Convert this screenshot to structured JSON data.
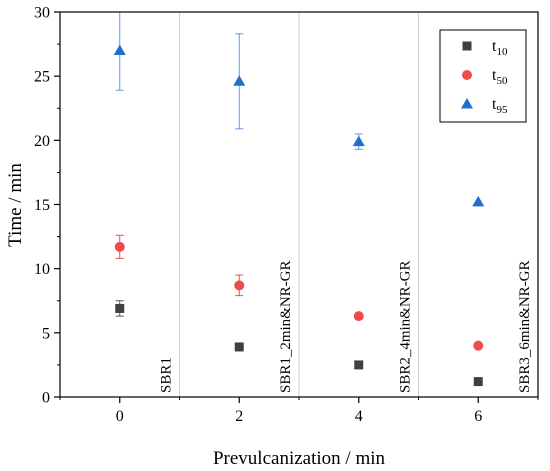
{
  "chart_data": {
    "type": "scatter",
    "xlabel": "Prevulcanization / min",
    "ylabel": "Time / min",
    "xlim": [
      -1,
      7
    ],
    "ylim": [
      0,
      30
    ],
    "x_ticks": [
      0,
      2,
      4,
      6
    ],
    "y_ticks": [
      0,
      5,
      10,
      15,
      20,
      25,
      30
    ],
    "grid": false,
    "region_dividers": [
      1,
      3,
      5
    ],
    "legend_position": "top-right",
    "annotations": [
      {
        "text": "SBR1",
        "x": 0.85
      },
      {
        "text": "SBR1_2min&NR-GR",
        "x": 2.85
      },
      {
        "text": "SBR2_4min&NR-GR",
        "x": 4.85
      },
      {
        "text": "SBR3_6min&NR-GR",
        "x": 6.85
      }
    ],
    "series": [
      {
        "name": "t10",
        "name_main": "t",
        "name_sub": "10",
        "marker": "square",
        "color": "#404040",
        "errcolor": "#555555",
        "x": [
          0,
          2,
          4,
          6
        ],
        "y": [
          6.9,
          3.9,
          2.5,
          1.2
        ],
        "err": [
          0.6,
          0.2,
          0.15,
          0.1
        ]
      },
      {
        "name": "t50",
        "name_main": "t",
        "name_sub": "50",
        "marker": "circle",
        "color": "#ef4b4b",
        "errcolor": "#ef4b4b",
        "x": [
          0,
          2,
          4,
          6
        ],
        "y": [
          11.7,
          8.7,
          6.3,
          4.0
        ],
        "err": [
          0.9,
          0.8,
          0.15,
          0.1
        ]
      },
      {
        "name": "t95",
        "name_main": "t",
        "name_sub": "95",
        "marker": "triangle",
        "color": "#1f6fd1",
        "errcolor": "#5b9be8",
        "x": [
          0,
          2,
          4,
          6
        ],
        "y": [
          27.0,
          24.6,
          19.9,
          15.2
        ],
        "err": [
          3.1,
          3.7,
          0.6,
          0.1
        ]
      }
    ]
  }
}
